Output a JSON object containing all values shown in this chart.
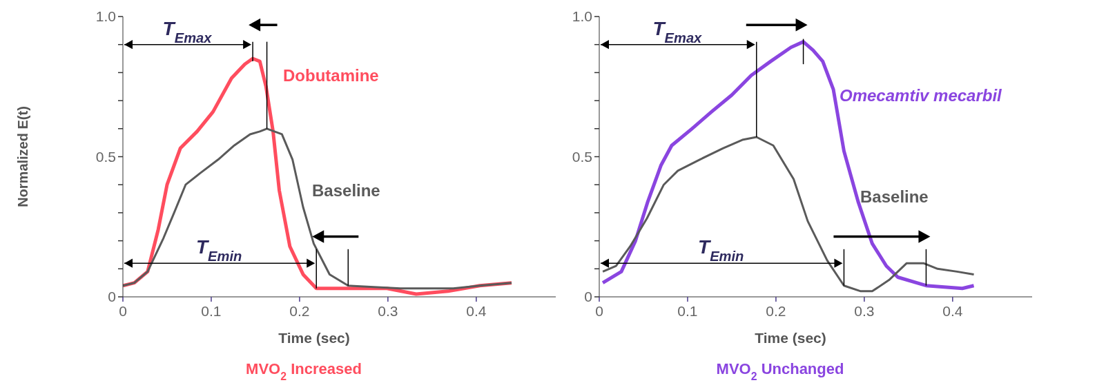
{
  "chart_data": [
    {
      "type": "line",
      "ylabel": "Normalized E(t)",
      "xlabel": "Time (sec)",
      "subtitle": "MVO$_{2}$ Increased",
      "xlim": [
        0,
        0.49
      ],
      "xticks": [
        {
          "value": 0,
          "label": "0"
        },
        0.1,
        0.2,
        0.3,
        0.4
      ],
      "ylim": [
        0,
        1
      ],
      "yticks": [
        {
          "value": 0,
          "label": "0"
        },
        {
          "value": 0.1,
          "label": null
        },
        {
          "value": 0.2,
          "label": null
        },
        {
          "value": 0.3,
          "label": null
        },
        {
          "value": 0.4,
          "label": null
        },
        0.5,
        {
          "value": 0.6,
          "label": null
        },
        {
          "value": 0.7,
          "label": null
        },
        {
          "value": 0.8,
          "label": null
        },
        {
          "value": 0.9,
          "label": null
        },
        {
          "value": 1,
          "label": "1.0"
        }
      ],
      "annotations": [
        "T$_{Emax}$",
        "T$_{Emin}$"
      ],
      "series": [
        {
          "name": "Dobutamine",
          "color": "#ff4d5e",
          "x": [
            0,
            0.013,
            0.028,
            0.04,
            0.05,
            0.065,
            0.084,
            0.102,
            0.123,
            0.138,
            0.147,
            0.155,
            0.162,
            0.17,
            0.177,
            0.189,
            0.204,
            0.219,
            0.255,
            0.299,
            0.332,
            0.368,
            0.404,
            0.44
          ],
          "values": [
            0.04,
            0.05,
            0.09,
            0.24,
            0.4,
            0.53,
            0.59,
            0.66,
            0.78,
            0.83,
            0.85,
            0.84,
            0.75,
            0.59,
            0.38,
            0.18,
            0.08,
            0.03,
            0.03,
            0.03,
            0.01,
            0.02,
            0.04,
            0.05
          ]
        },
        {
          "name": "Baseline",
          "color": "#5a5a5a",
          "x": [
            0,
            0.013,
            0.028,
            0.046,
            0.058,
            0.071,
            0.087,
            0.108,
            0.126,
            0.144,
            0.155,
            0.163,
            0.18,
            0.192,
            0.204,
            0.216,
            0.234,
            0.255,
            0.314,
            0.374,
            0.404,
            0.44
          ],
          "values": [
            0.04,
            0.05,
            0.09,
            0.21,
            0.3,
            0.4,
            0.44,
            0.49,
            0.54,
            0.58,
            0.59,
            0.6,
            0.58,
            0.49,
            0.32,
            0.19,
            0.08,
            0.04,
            0.03,
            0.03,
            0.04,
            0.05
          ]
        }
      ]
    },
    {
      "type": "line",
      "xlabel": "Time (sec)",
      "subtitle": "MVO$_{2}$ Unchanged",
      "xlim": [
        0,
        0.49
      ],
      "xticks": [
        {
          "value": 0,
          "label": "0"
        },
        0.1,
        0.2,
        0.3,
        0.4
      ],
      "ylim": [
        0,
        1
      ],
      "yticks": [
        {
          "value": 0,
          "label": "0"
        },
        {
          "value": 0.1,
          "label": null
        },
        {
          "value": 0.2,
          "label": null
        },
        {
          "value": 0.3,
          "label": null
        },
        {
          "value": 0.4,
          "label": null
        },
        0.5,
        {
          "value": 0.6,
          "label": null
        },
        {
          "value": 0.7,
          "label": null
        },
        {
          "value": 0.8,
          "label": null
        },
        {
          "value": 0.9,
          "label": null
        },
        {
          "value": 1,
          "label": "1.0"
        }
      ],
      "annotations": [
        "T$_{Emax}$",
        "T$_{Emin}$"
      ],
      "series": [
        {
          "name": "Omecamtiv mecarbil",
          "color": "#8a45e0",
          "x": [
            0.004,
            0.025,
            0.041,
            0.055,
            0.07,
            0.082,
            0.105,
            0.127,
            0.15,
            0.172,
            0.194,
            0.217,
            0.231,
            0.242,
            0.253,
            0.265,
            0.277,
            0.293,
            0.309,
            0.325,
            0.338,
            0.37,
            0.411,
            0.424
          ],
          "values": [
            0.05,
            0.09,
            0.2,
            0.34,
            0.47,
            0.54,
            0.6,
            0.66,
            0.72,
            0.79,
            0.84,
            0.89,
            0.91,
            0.88,
            0.84,
            0.74,
            0.52,
            0.34,
            0.19,
            0.11,
            0.07,
            0.04,
            0.03,
            0.04
          ]
        },
        {
          "name": "Baseline",
          "color": "#5a5a5a",
          "x": [
            0.004,
            0.019,
            0.035,
            0.054,
            0.073,
            0.089,
            0.114,
            0.14,
            0.162,
            0.178,
            0.197,
            0.22,
            0.236,
            0.258,
            0.277,
            0.296,
            0.309,
            0.328,
            0.348,
            0.367,
            0.383,
            0.405,
            0.424
          ],
          "values": [
            0.09,
            0.11,
            0.18,
            0.28,
            0.4,
            0.45,
            0.49,
            0.53,
            0.56,
            0.57,
            0.54,
            0.42,
            0.27,
            0.13,
            0.04,
            0.02,
            0.02,
            0.06,
            0.12,
            0.12,
            0.1,
            0.09,
            0.08
          ]
        }
      ]
    }
  ]
}
